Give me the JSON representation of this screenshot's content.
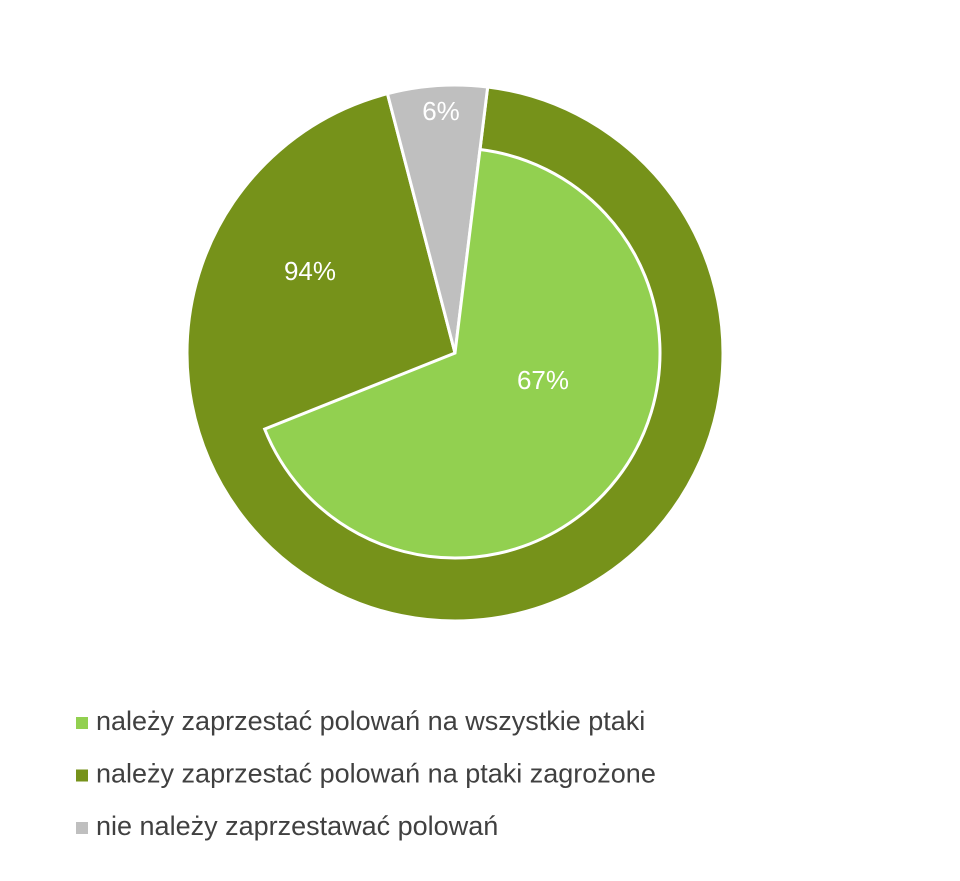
{
  "chart_data": {
    "type": "pie",
    "categories": [
      "należy zaprzestać polowań na wszystkie ptaki",
      "należy zaprzestać polowań na ptaki zagrożone",
      "nie należy zaprzestawać polowań"
    ],
    "values": [
      67,
      94,
      6
    ],
    "value_labels": [
      "67%",
      "94%",
      "6%"
    ],
    "colors": [
      "#92d050",
      "#76921a",
      "#bfbfbf"
    ]
  }
}
